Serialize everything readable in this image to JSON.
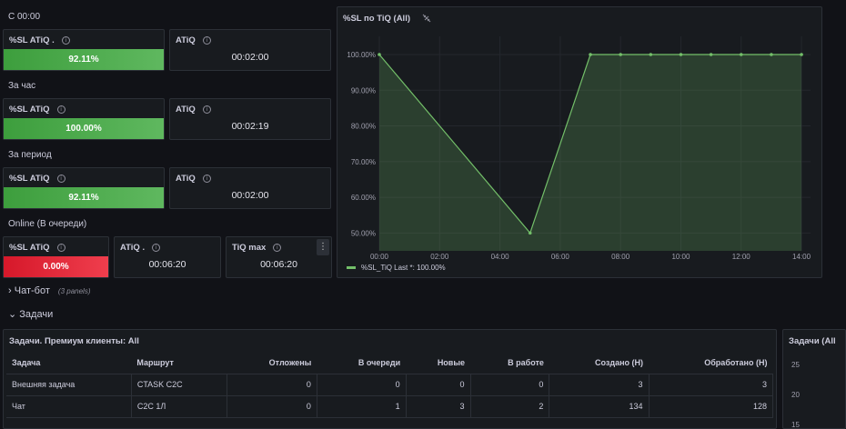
{
  "sections": [
    {
      "label": "С 00:00"
    },
    {
      "label": "За час"
    },
    {
      "label": "За период"
    },
    {
      "label": "Online (В очереди)"
    }
  ],
  "stats": {
    "s1_sl": {
      "title": "%SL ATiQ .",
      "value": "92.11%"
    },
    "s1_atiq": {
      "title": "ATiQ",
      "value": "00:02:00"
    },
    "s2_sl": {
      "title": "%SL ATiQ",
      "value": "100.00%"
    },
    "s2_atiq": {
      "title": "ATiQ",
      "value": "00:02:19"
    },
    "s3_sl": {
      "title": "%SL ATiQ",
      "value": "92.11%"
    },
    "s3_atiq": {
      "title": "ATiQ",
      "value": "00:02:00"
    },
    "s4_sl": {
      "title": "%SL ATiQ",
      "value": "0.00%"
    },
    "s4_atiq": {
      "title": "ATiQ .",
      "value": "00:06:20"
    },
    "s4_tiqmax": {
      "title": "TiQ max",
      "value": "00:06:20"
    }
  },
  "info_glyph": "i",
  "menu_glyph": "⋮",
  "chart_panel": {
    "title": "%SL по TiQ (All)",
    "legend": "%SL_TiQ  Last *: 100.00%"
  },
  "chart_data": {
    "type": "area",
    "x": [
      "00:00",
      "05:00",
      "07:00",
      "08:00",
      "09:00",
      "10:00",
      "11:00",
      "12:00",
      "13:00",
      "14:00"
    ],
    "x_hours": [
      0,
      5,
      7,
      8,
      9,
      10,
      11,
      12,
      13,
      14
    ],
    "series": [
      {
        "name": "%SL_TiQ",
        "values": [
          100,
          50,
          100,
          100,
          100,
          100,
          100,
          100,
          100,
          100
        ]
      }
    ],
    "xticks": [
      "00:00",
      "02:00",
      "04:00",
      "06:00",
      "08:00",
      "10:00",
      "12:00",
      "14:00"
    ],
    "xtick_hours": [
      0,
      2,
      4,
      6,
      8,
      10,
      12,
      14
    ],
    "yticks": [
      "100.00%",
      "90.00%",
      "80.00%",
      "70.00%",
      "60.00%",
      "50.00%"
    ],
    "ytick_values": [
      100,
      90,
      80,
      70,
      60,
      50
    ],
    "xlim": [
      0,
      14.3
    ],
    "ylim": [
      45,
      100
    ],
    "grid": true,
    "color": "#73bf69"
  },
  "rows": {
    "chatbot": {
      "label": "Чат-бот",
      "sub": "(3 panels)",
      "chevron": "›"
    },
    "tasks": {
      "label": "Задачи",
      "chevron": "⌄"
    }
  },
  "table_panel": {
    "title": "Задачи. Премиум клиенты: All",
    "headers": [
      "Задача",
      "Маршрут",
      "Отложены",
      "В очереди",
      "Новые",
      "В работе",
      "Создано (Н)",
      "Обработано (Н)"
    ],
    "rows": [
      [
        "Внешняя задача",
        "CTASK C2C",
        "0",
        "0",
        "0",
        "0",
        "3",
        "3"
      ],
      [
        "Чат",
        "C2C 1Л",
        "0",
        "1",
        "3",
        "2",
        "134",
        "128"
      ]
    ]
  },
  "side_panel": {
    "title": "Задачи (All",
    "yticks": [
      "25",
      "20",
      "15"
    ]
  }
}
